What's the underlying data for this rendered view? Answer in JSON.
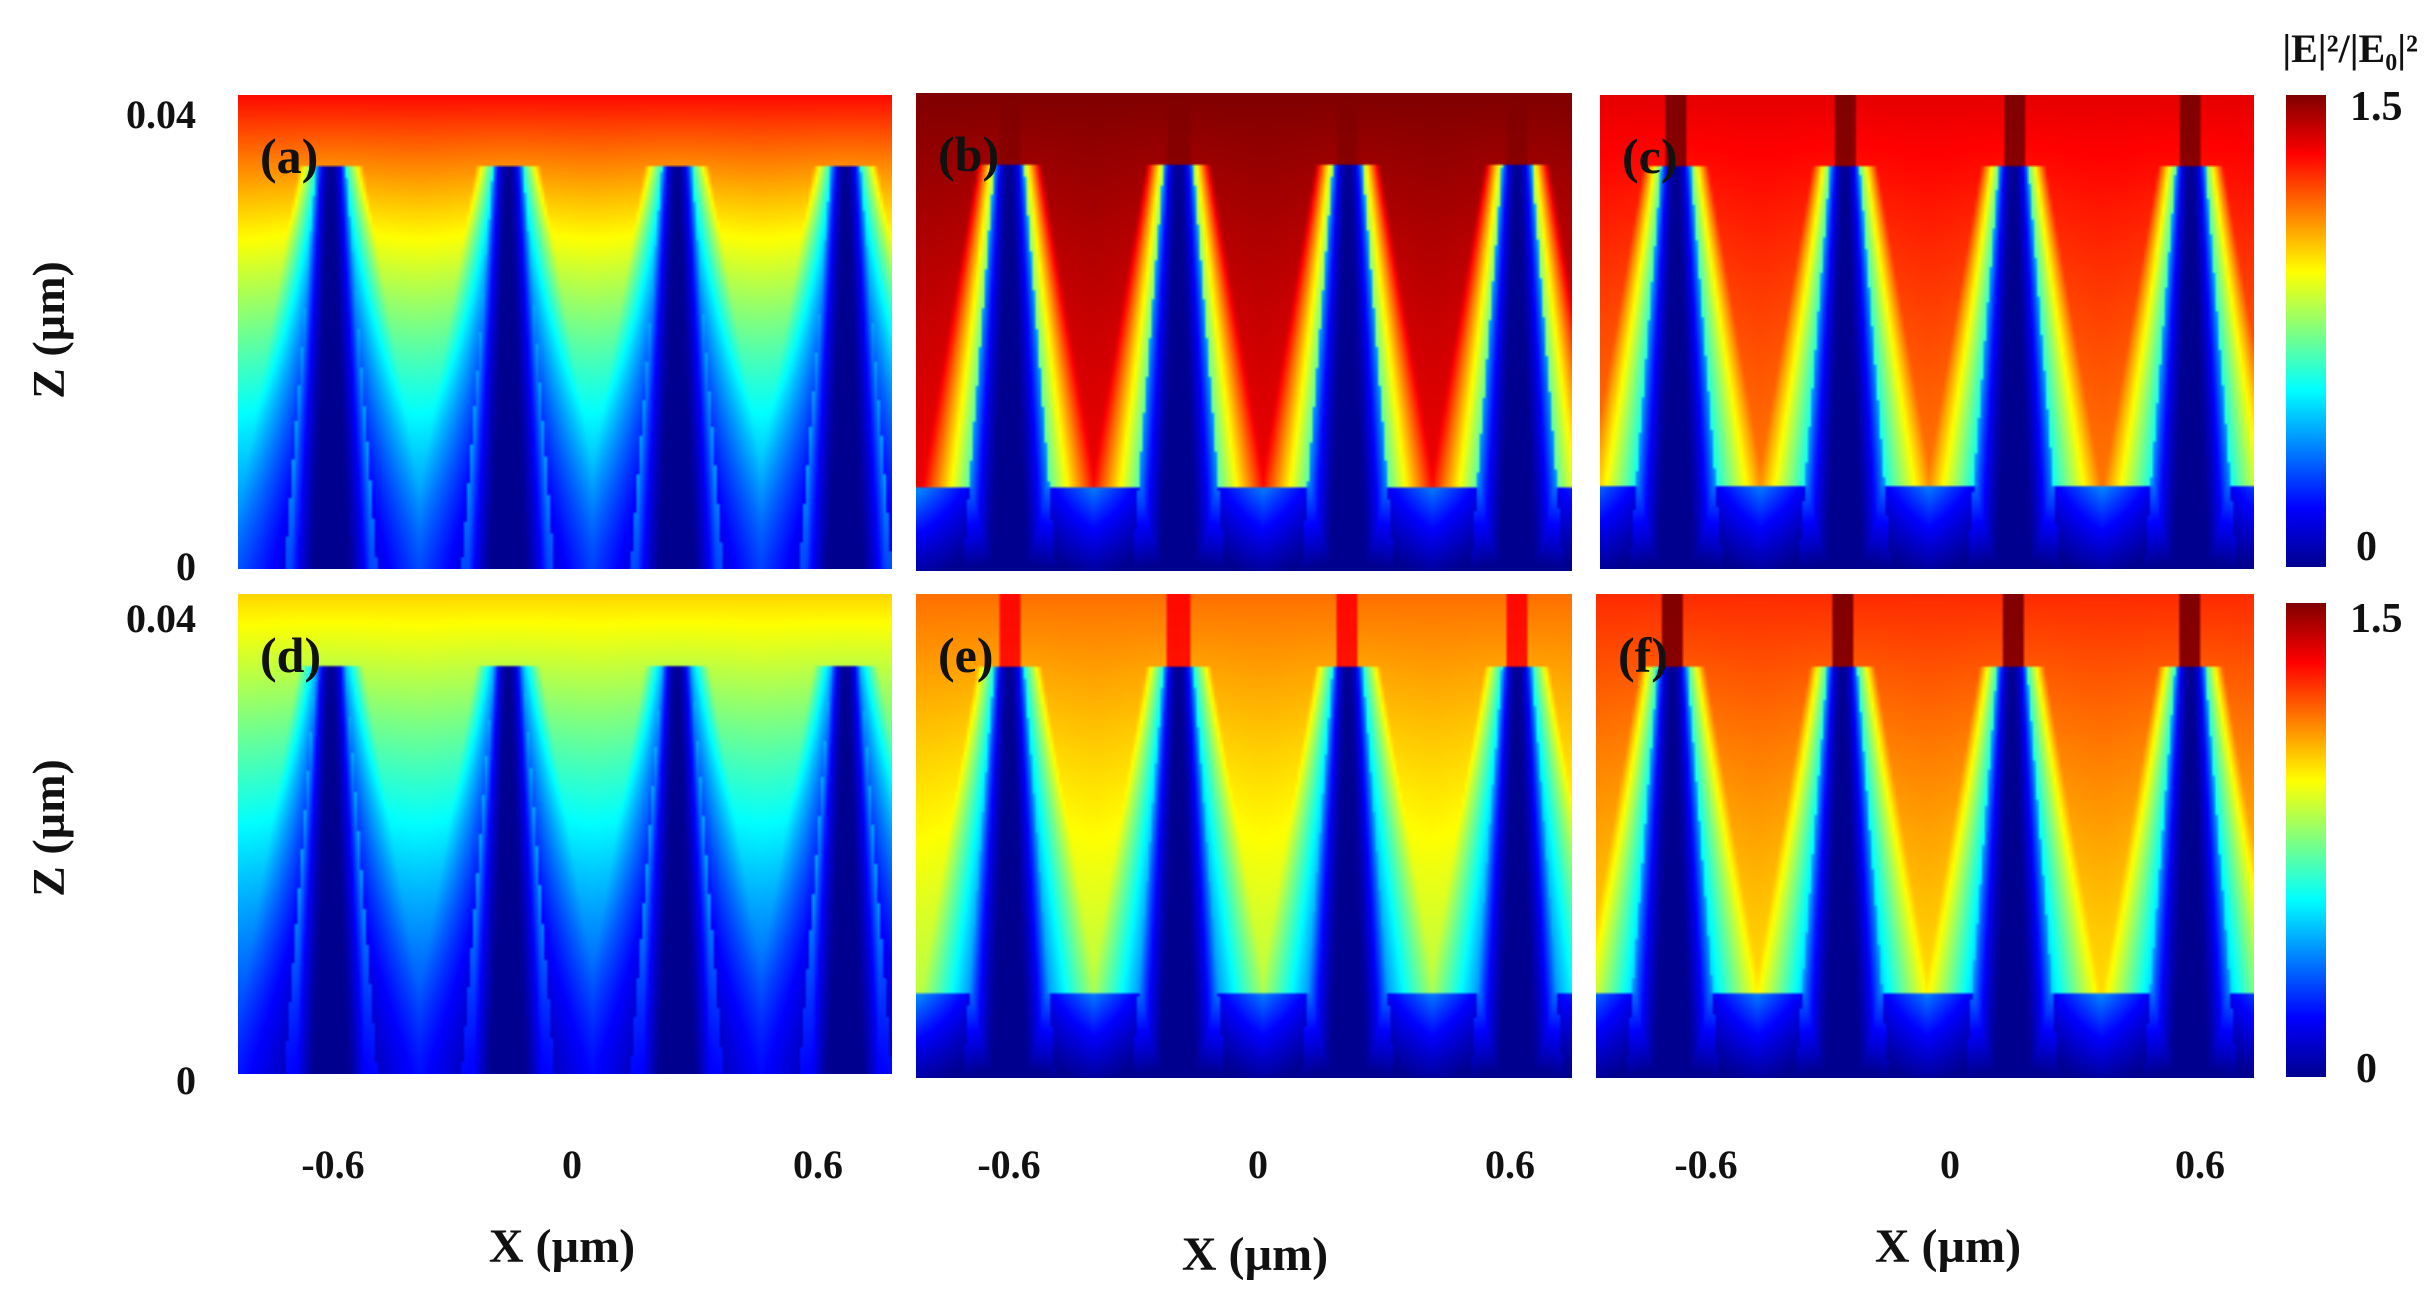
{
  "chart_data": {
    "type": "heatmap",
    "title": "",
    "xlabel": "X (µm)",
    "ylabel": "Z (µm)",
    "colorbar_label": "|E|²/|E₀|²",
    "colorbar_ticks": [
      "1.5",
      "0"
    ],
    "colorbar_range": [
      0,
      1.5
    ],
    "colormap": [
      "#00008f",
      "#0000ff",
      "#0080ff",
      "#00ffff",
      "#80ff80",
      "#ffff00",
      "#ff8000",
      "#ff0000",
      "#800000"
    ],
    "x_ticks": [
      "-0.6",
      "0",
      "0.6"
    ],
    "x_tick_values": [
      -0.6,
      0,
      0.6
    ],
    "xlim": [
      -0.8,
      0.75
    ],
    "y_ticks": [
      "0.04",
      "0"
    ],
    "y_tick_values": [
      0.04,
      0
    ],
    "ylim": [
      0,
      0.04
    ],
    "panels": [
      {
        "label": "(a)",
        "pillar_x": [
          -0.58,
          -0.16,
          0.24,
          0.64
        ],
        "field_top": 1.3,
        "field_mid": 0.95,
        "field_bottom": 0.35,
        "transition_z": 0.0,
        "hotspot": 0.0
      },
      {
        "label": "(b)",
        "pillar_x": [
          -0.58,
          -0.18,
          0.22,
          0.62
        ],
        "field_top": 1.5,
        "field_mid": 1.35,
        "field_bottom": 0.05,
        "transition_z": 0.007,
        "hotspot": 1.5
      },
      {
        "label": "(c)",
        "pillar_x": [
          -0.62,
          -0.22,
          0.18,
          0.6
        ],
        "field_top": 1.35,
        "field_mid": 1.15,
        "field_bottom": 0.05,
        "transition_z": 0.007,
        "hotspot": 1.5
      },
      {
        "label": "(d)",
        "pillar_x": [
          -0.58,
          -0.16,
          0.24,
          0.64
        ],
        "field_top": 1.0,
        "field_mid": 0.75,
        "field_bottom": 0.25,
        "transition_z": 0.0,
        "hotspot": 0.0
      },
      {
        "label": "(e)",
        "pillar_x": [
          -0.58,
          -0.18,
          0.22,
          0.62
        ],
        "field_top": 1.15,
        "field_mid": 0.85,
        "field_bottom": 0.05,
        "transition_z": 0.007,
        "hotspot": 1.3
      },
      {
        "label": "(f)",
        "pillar_x": [
          -0.62,
          -0.22,
          0.18,
          0.6
        ],
        "field_top": 1.25,
        "field_mid": 1.0,
        "field_bottom": 0.05,
        "transition_z": 0.007,
        "hotspot": 1.5
      }
    ]
  }
}
